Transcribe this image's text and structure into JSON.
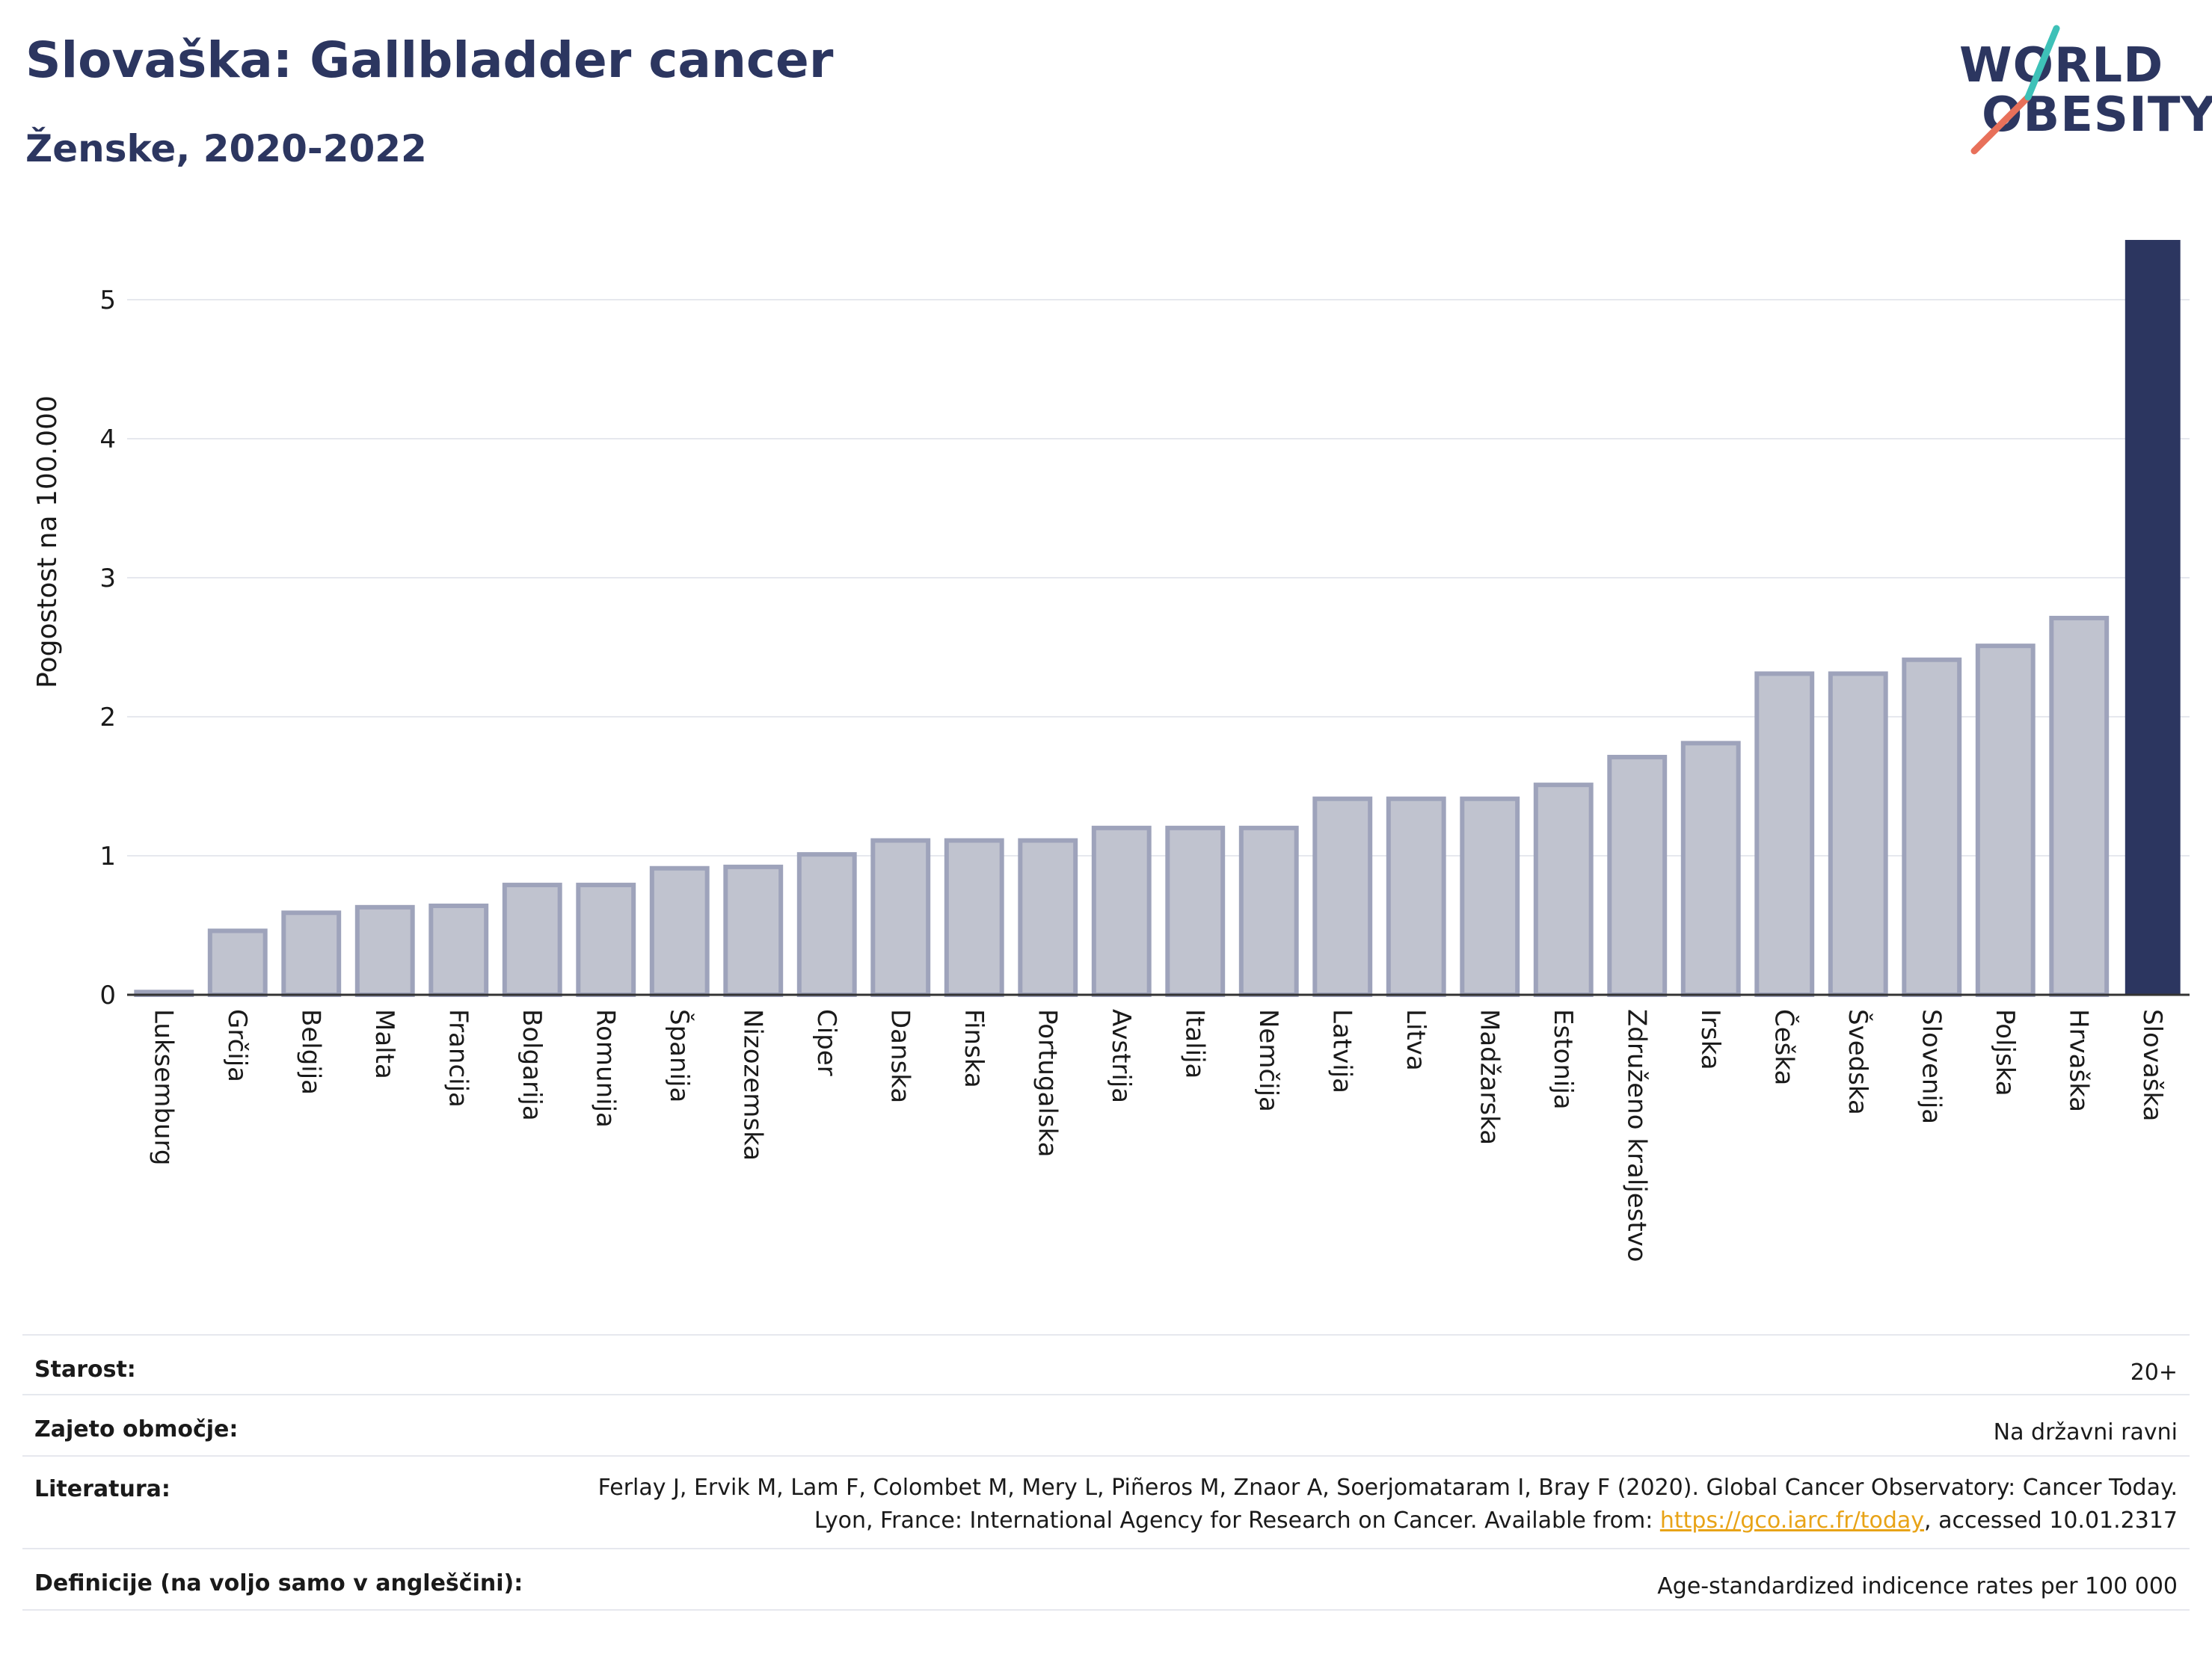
{
  "header": {
    "title": "Slovaška: Gallbladder cancer",
    "subtitle": "Ženske, 2020-2022"
  },
  "logo": {
    "line1": "WORLD",
    "line2": "OBESITY",
    "colors": {
      "text": "#2c3660",
      "slash_top": "#3ec1b8",
      "slash_bottom": "#e8705a"
    }
  },
  "chart_data": {
    "type": "bar",
    "title": "Slovaška: Gallbladder cancer",
    "subtitle": "Ženske, 2020-2022",
    "xlabel": "",
    "ylabel": "Pogostost na 100.000",
    "ylim": [
      0,
      5.45
    ],
    "yticks": [
      0,
      1,
      2,
      3,
      4,
      5
    ],
    "grid": true,
    "categories": [
      "Luksemburg",
      "Grčija",
      "Belgija",
      "Malta",
      "Francija",
      "Bolgarija",
      "Romunija",
      "Španija",
      "Nizozemska",
      "Ciper",
      "Danska",
      "Finska",
      "Portugalska",
      "Avstrija",
      "Italija",
      "Nemčija",
      "Latvija",
      "Litva",
      "Madžarska",
      "Estonija",
      "Združeno kraljestvo",
      "Irska",
      "Češka",
      "Švedska",
      "Slovenija",
      "Poljska",
      "Hrvaška",
      "Slovaška"
    ],
    "values": [
      0.02,
      0.46,
      0.59,
      0.63,
      0.64,
      0.79,
      0.79,
      0.91,
      0.92,
      1.01,
      1.11,
      1.11,
      1.11,
      1.2,
      1.2,
      1.2,
      1.41,
      1.41,
      1.41,
      1.51,
      1.71,
      1.81,
      2.31,
      2.31,
      2.41,
      2.51,
      2.71,
      5.43
    ],
    "highlight": "Slovaška",
    "colors": {
      "bar": "#c0c3cf",
      "bar_border": "#9ea3bb",
      "highlight": "#2c3660",
      "grid": "#e6e8ee",
      "axis": "#333333"
    }
  },
  "meta": {
    "age_label": "Starost:",
    "age_value": "20+",
    "area_label": "Zajeto območje:",
    "area_value": "Na državni ravni",
    "ref_label": "Literatura:",
    "ref_text": "Ferlay J, Ervik M, Lam F, Colombet M, Mery L, Piñeros M, Znaor A, Soerjomataram I, Bray F (2020). Global Cancer Observatory: Cancer Today. Lyon, France: International Agency for Research on Cancer. Available from: ",
    "ref_link": "https://gco.iarc.fr/today",
    "ref_suffix": ", accessed 10.01.2317",
    "def_label": "Definicije (na voljo samo v angleščini):",
    "def_value": "Age-standardized indicence rates per 100 000"
  }
}
